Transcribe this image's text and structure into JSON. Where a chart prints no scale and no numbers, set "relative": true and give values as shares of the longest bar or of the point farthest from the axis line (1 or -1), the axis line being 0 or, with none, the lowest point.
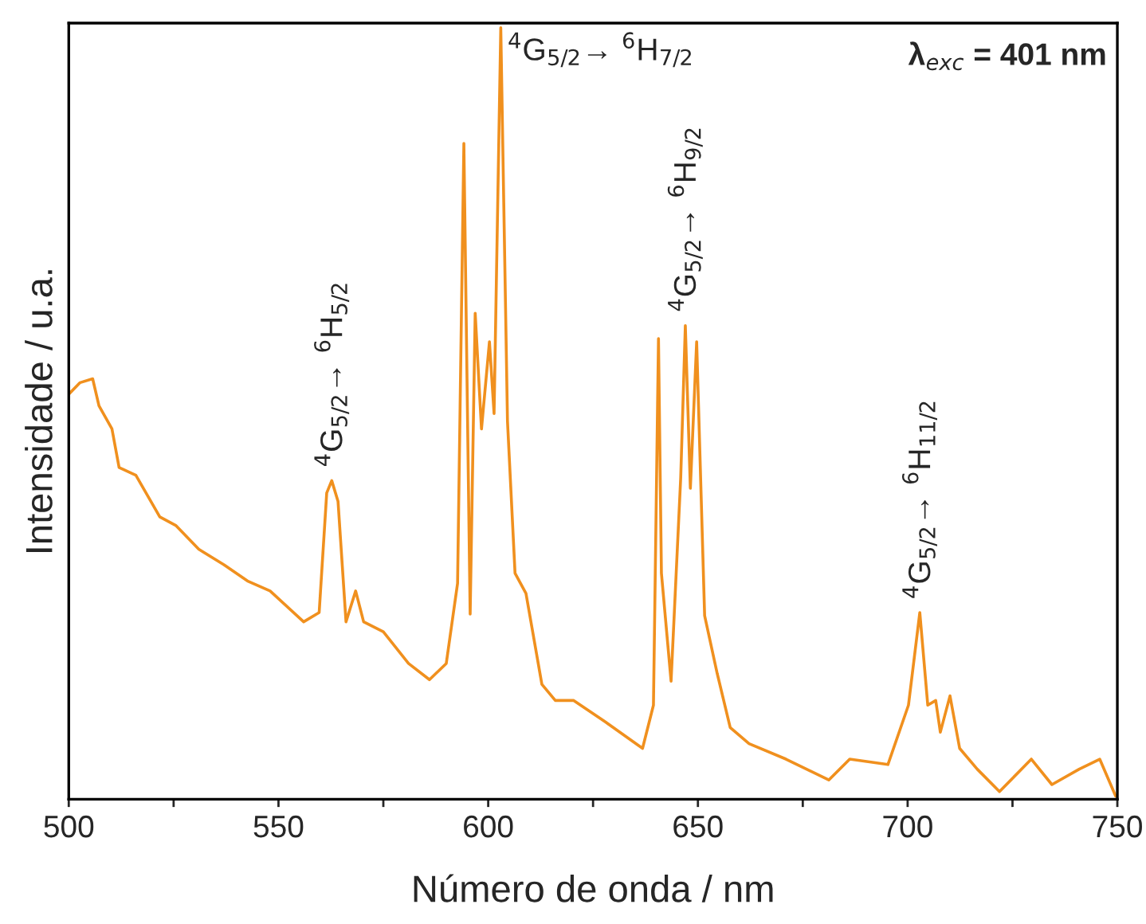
{
  "chart_data": {
    "type": "line",
    "relative": true,
    "xlabel": "Número de onda / nm",
    "ylabel": "Intensidade / u.a.",
    "xlim": [
      500,
      750
    ],
    "xticks": [
      500,
      {
        "value": 525,
        "label": null
      },
      550,
      {
        "value": 575,
        "label": null
      },
      600,
      {
        "value": 625,
        "label": null
      },
      650,
      {
        "value": 675,
        "label": null
      },
      700,
      {
        "value": 725,
        "label": null
      },
      750
    ],
    "grid": false,
    "marker": "none",
    "line_style": "solid",
    "series": [
      {
        "color": "#f0901e",
        "x": [
          500,
          502.7,
          505.7,
          507.2,
          510.3,
          512,
          516,
          521.7,
          525.5,
          531,
          537,
          542.6,
          548,
          556,
          559.7,
          561.5,
          562.7,
          564.2,
          566.1,
          568.4,
          570.3,
          575,
          581,
          586,
          590,
          592.7,
          594.2,
          595.7,
          596.9,
          598.4,
          600.3,
          601.4,
          603,
          604.6,
          606.4,
          609,
          612.8,
          616,
          620.4,
          628,
          636.8,
          639.4,
          640.6,
          641.3,
          643.6,
          645.9,
          647,
          648.2,
          649.7,
          651.6,
          654.6,
          657.7,
          662.2,
          671,
          681.2,
          686.2,
          695.3,
          700.2,
          702.9,
          704.8,
          706.7,
          707.8,
          710.1,
          712.4,
          716.6,
          721.9,
          729.5,
          734.4,
          740.9,
          745.8,
          749.6
        ],
        "values": [
          0.525,
          0.54,
          0.545,
          0.51,
          0.48,
          0.43,
          0.42,
          0.366,
          0.355,
          0.324,
          0.304,
          0.283,
          0.27,
          0.23,
          0.242,
          0.397,
          0.413,
          0.386,
          0.23,
          0.27,
          0.23,
          0.217,
          0.176,
          0.155,
          0.176,
          0.28,
          0.85,
          0.24,
          0.63,
          0.48,
          0.593,
          0.5,
          1.0,
          0.49,
          0.293,
          0.267,
          0.149,
          0.128,
          0.128,
          0.1,
          0.066,
          0.122,
          0.597,
          0.293,
          0.153,
          0.417,
          0.614,
          0.403,
          0.593,
          0.238,
          0.163,
          0.093,
          0.072,
          0.052,
          0.025,
          0.052,
          0.045,
          0.122,
          0.242,
          0.122,
          0.128,
          0.087,
          0.134,
          0.066,
          0.039,
          0.01,
          0.052,
          0.019,
          0.039,
          0.052,
          0.004
        ]
      }
    ],
    "annotations": [
      {
        "text": "$^{4}$G$_{5/2}$→ $^{6}$H$_{5/2}$",
        "x": 562.7,
        "y": 0.413
      },
      {
        "text": "$^{4}$G$_{5/2}$→ $^{6}$H$_{7/2}$",
        "x": 603,
        "y": 1.0
      },
      {
        "text": "$^{4}$G$_{5/2}$→ $^{6}$H$_{9/2}$",
        "x": 647,
        "y": 0.614
      },
      {
        "text": "$^{4}$G$_{5/2}$→ $^{6}$H$_{11/2}$",
        "x": 702.9,
        "y": 0.242
      },
      "λ$_{exc}$ = 401 nm"
    ]
  }
}
